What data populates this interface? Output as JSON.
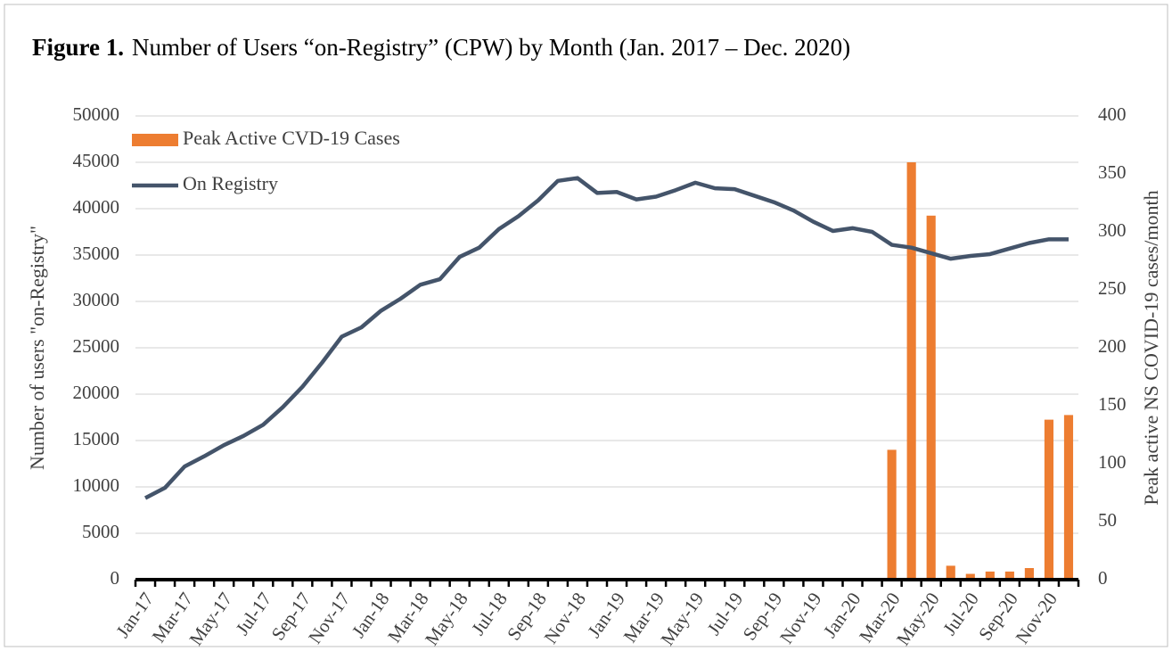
{
  "chart_data": {
    "type": "bar-line",
    "title_prefix": "Figure 1.",
    "title": "Number of Users “on-Registry” (CPW) by Month (Jan. 2017 – Dec. 2020)",
    "y_label": "Number of users \"on-Registry\"",
    "y2_label": "Peak active NS COVID-19  cases/month",
    "categories": [
      "Jan-17",
      null,
      "Mar-17",
      null,
      "May-17",
      null,
      "Jul-17",
      null,
      "Sep-17",
      null,
      "Nov-17",
      null,
      "Jan-18",
      null,
      "Mar-18",
      null,
      "May-18",
      null,
      "Jul-18",
      null,
      "Sep-18",
      null,
      "Nov-18",
      null,
      "Jan-19",
      null,
      "Mar-19",
      null,
      "May-19",
      null,
      "Jul-19",
      null,
      "Sep-19",
      null,
      "Nov-19",
      null,
      "Jan-20",
      null,
      "Mar-20",
      null,
      "May-20",
      null,
      "Jul-20",
      null,
      "Sep-20",
      null,
      "Nov-20",
      null
    ],
    "series": [
      {
        "name": "Peak Active CVD-19 Cases",
        "type": "bar",
        "axis": "y2",
        "color": "#ed7d31",
        "values": [
          0,
          0,
          0,
          0,
          0,
          0,
          0,
          0,
          0,
          0,
          0,
          0,
          0,
          0,
          0,
          0,
          0,
          0,
          0,
          0,
          0,
          0,
          0,
          0,
          0,
          0,
          0,
          0,
          0,
          0,
          0,
          0,
          0,
          0,
          0,
          0,
          0,
          0,
          112,
          360,
          314,
          12,
          5,
          7,
          7,
          10,
          138,
          142
        ]
      },
      {
        "name": "On Registry",
        "type": "line",
        "axis": "y",
        "color": "#44546a",
        "values": [
          8800,
          9900,
          12200,
          13300,
          14500,
          15500,
          16700,
          18600,
          20800,
          23400,
          26200,
          27200,
          29000,
          30300,
          31800,
          32400,
          34800,
          35800,
          37800,
          39200,
          40900,
          43000,
          43300,
          41700,
          41800,
          41000,
          41300,
          42000,
          42800,
          42200,
          42100,
          41400,
          40700,
          39800,
          38600,
          37600,
          37900,
          37500,
          36100,
          35800,
          35200,
          34600,
          34900,
          35100,
          35700,
          36300,
          36700,
          36700
        ]
      }
    ],
    "ylim": [
      0,
      50000
    ],
    "yticks": [
      0,
      5000,
      10000,
      15000,
      20000,
      25000,
      30000,
      35000,
      40000,
      45000,
      50000
    ],
    "y2lim": [
      0,
      400
    ],
    "y2ticks": [
      0,
      50,
      100,
      150,
      200,
      250,
      300,
      350,
      400
    ],
    "grid": true,
    "legend": "top-left"
  }
}
